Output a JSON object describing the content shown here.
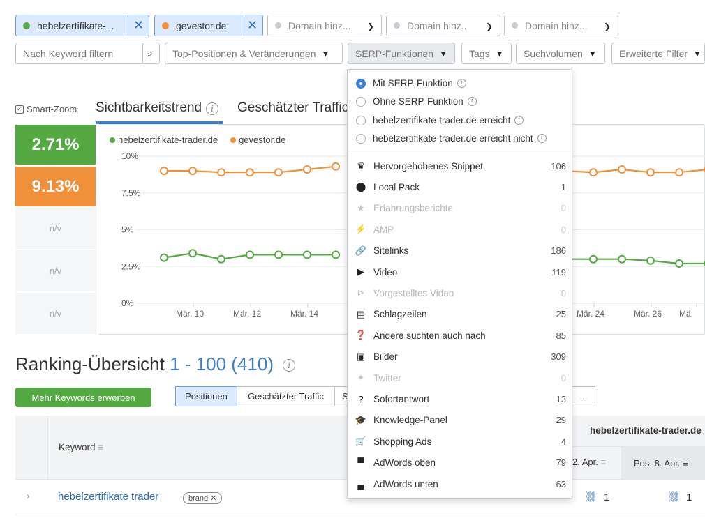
{
  "domains": [
    {
      "label": "hebelzertifikate-...",
      "color": "#55a943"
    },
    {
      "label": "gevestor.de",
      "color": "#f0913a"
    },
    {
      "label": "Domain hinz..."
    },
    {
      "label": "Domain hinz..."
    },
    {
      "label": "Domain hinz..."
    }
  ],
  "filters": {
    "keyword_placeholder": "Nach Keyword filtern",
    "positions": "Top-Positionen & Veränderungen",
    "serp": "SERP-Funktionen",
    "tags": "Tags",
    "volume": "Suchvolumen",
    "advanced": "Erweiterte Filter"
  },
  "smart_zoom": "Smart-Zoom",
  "tabs": {
    "visibility": "Sichtbarkeitstrend",
    "traffic": "Geschätzter Traffic"
  },
  "scores": {
    "domain1": "2.71%",
    "domain2": "9.13%",
    "na": "n/v"
  },
  "chart_data": {
    "type": "line",
    "legend": [
      "hebelzertifikate-trader.de",
      "gevestor.de"
    ],
    "y_ticks": [
      "10%",
      "7.5%",
      "5%",
      "2.5%",
      "0%"
    ],
    "x_ticks": [
      "Mär. 10",
      "Mär. 12",
      "Mär. 14",
      "Mär. 24",
      "Mär. 26",
      "Mä"
    ],
    "ylim": [
      0,
      10
    ],
    "series": [
      {
        "name": "hebelzertifikate-trader.de",
        "color": "#55a943",
        "left": [
          3.1,
          3.4,
          3.0,
          3.3,
          3.3,
          3.3,
          3.3
        ],
        "right": [
          3.0,
          3.0,
          3.0,
          2.9,
          2.7,
          2.7
        ]
      },
      {
        "name": "gevestor.de",
        "color": "#f0913a",
        "left": [
          9.0,
          9.0,
          8.9,
          8.9,
          8.9,
          9.1,
          9.3
        ],
        "right": [
          9.0,
          8.9,
          9.1,
          8.9,
          8.9,
          9.1
        ]
      }
    ]
  },
  "ranking": {
    "title": "Ranking-Übersicht",
    "range": "1 - 100 (410)",
    "buy_button": "Mehr Keywords erwerben",
    "views": [
      "Positionen",
      "Geschätzter Traffic",
      "S"
    ],
    "more": "...",
    "col_keyword": "Keyword",
    "col_domain": "hebelzertifikate-trader.de",
    "col_apr2": "2. Apr.",
    "col_apr8": "Pos. 8. Apr.",
    "row1": {
      "keyword": "hebelzertifikate trader",
      "tag": "brand ✕",
      "pos1": "1",
      "pos2": "1"
    }
  },
  "serp_menu": {
    "radios": [
      {
        "label": "Mit SERP-Funktion",
        "checked": true
      },
      {
        "label": "Ohne SERP-Funktion",
        "checked": false
      },
      {
        "label": "hebelzertifikate-trader.de erreicht",
        "checked": false
      },
      {
        "label": "hebelzertifikate-trader.de erreicht nicht",
        "checked": false
      }
    ],
    "features": [
      {
        "icon": "crown-icon",
        "glyph": "♛",
        "label": "Hervorgehobenes Snippet",
        "count": "106",
        "enabled": true
      },
      {
        "icon": "map-pin-icon",
        "glyph": "⬤",
        "label": "Local Pack",
        "count": "1",
        "enabled": true
      },
      {
        "icon": "star-icon",
        "glyph": "★",
        "label": "Erfahrungsberichte",
        "count": "0",
        "enabled": false
      },
      {
        "icon": "amp-icon",
        "glyph": "⚡",
        "label": "AMP",
        "count": "0",
        "enabled": false
      },
      {
        "icon": "link-icon",
        "glyph": "🔗",
        "label": "Sitelinks",
        "count": "186",
        "enabled": true
      },
      {
        "icon": "video-icon",
        "glyph": "▶",
        "label": "Video",
        "count": "119",
        "enabled": true
      },
      {
        "icon": "featured-video-icon",
        "glyph": "⊳",
        "label": "Vorgestelltes Video",
        "count": "0",
        "enabled": false
      },
      {
        "icon": "news-icon",
        "glyph": "▤",
        "label": "Schlagzeilen",
        "count": "25",
        "enabled": true
      },
      {
        "icon": "questions-icon",
        "glyph": "❓",
        "label": "Andere suchten auch nach",
        "count": "85",
        "enabled": true
      },
      {
        "icon": "image-icon",
        "glyph": "▣",
        "label": "Bilder",
        "count": "309",
        "enabled": true
      },
      {
        "icon": "twitter-icon",
        "glyph": "✦",
        "label": "Twitter",
        "count": "0",
        "enabled": false
      },
      {
        "icon": "question-mark-icon",
        "glyph": "?",
        "label": "Sofortantwort",
        "count": "13",
        "enabled": true
      },
      {
        "icon": "graduation-cap-icon",
        "glyph": "🎓",
        "label": "Knowledge-Panel",
        "count": "29",
        "enabled": true
      },
      {
        "icon": "cart-icon",
        "glyph": "🛒",
        "label": "Shopping Ads",
        "count": "4",
        "enabled": true
      },
      {
        "icon": "ad-top-icon",
        "glyph": "▀",
        "label": "AdWords oben",
        "count": "79",
        "enabled": true
      },
      {
        "icon": "ad-bottom-icon",
        "glyph": "▄",
        "label": "AdWords unten",
        "count": "63",
        "enabled": true
      }
    ]
  }
}
